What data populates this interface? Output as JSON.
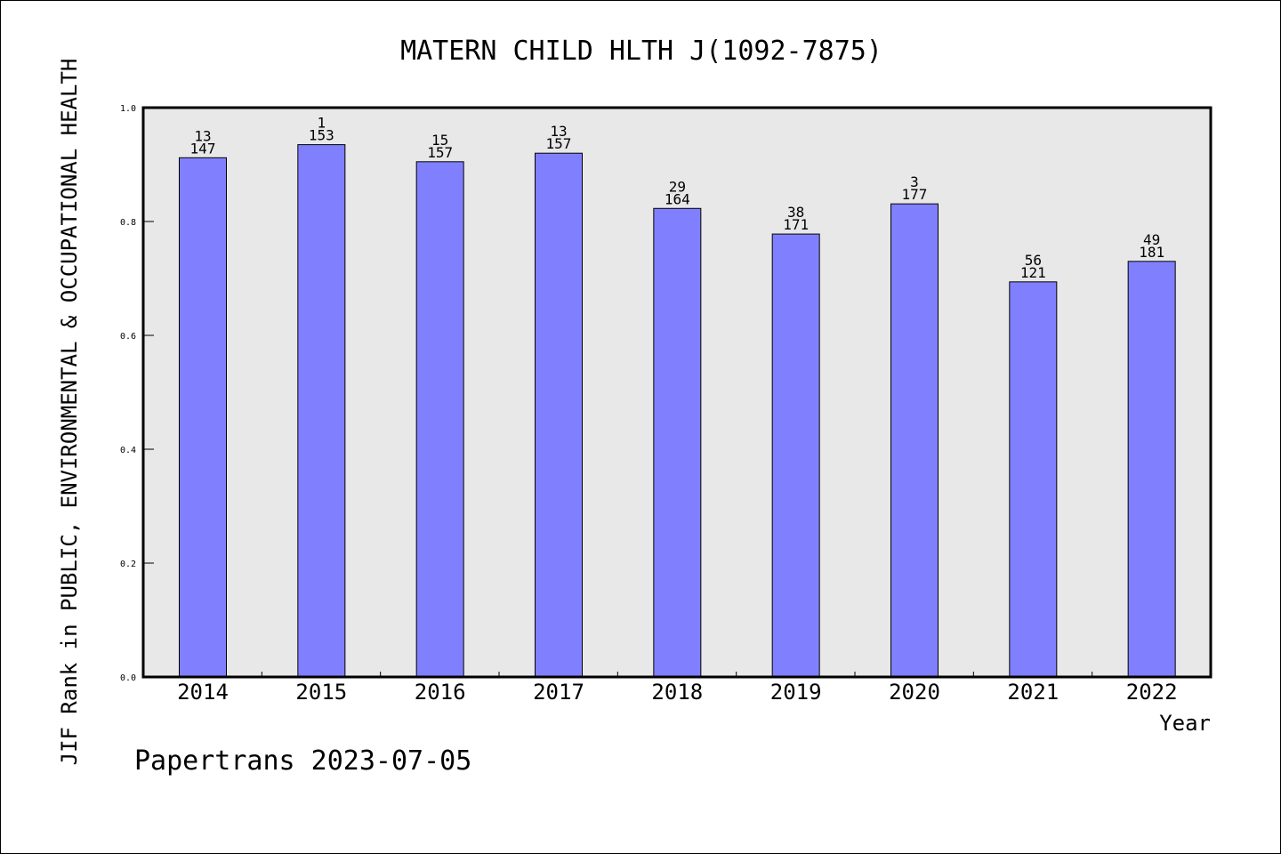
{
  "chart_data": {
    "type": "bar",
    "title": "MATERN CHILD HLTH J(1092-7875)",
    "xlabel": "Year",
    "ylabel": "JIF Rank in PUBLIC, ENVIRONMENTAL & OCCUPATIONAL HEALTH",
    "ylim": [
      0.0,
      1.0
    ],
    "yticks": [
      "0.0",
      "0.2",
      "0.4",
      "0.6",
      "0.8",
      "1.0"
    ],
    "categories": [
      "2014",
      "2015",
      "2016",
      "2017",
      "2018",
      "2019",
      "2020",
      "2021",
      "2022"
    ],
    "values": [
      0.912,
      0.935,
      0.905,
      0.92,
      0.823,
      0.778,
      0.831,
      0.694,
      0.73
    ],
    "rank": [
      "13",
      "1",
      "15",
      "13",
      "29",
      "38",
      "3",
      "56",
      "49"
    ],
    "total": [
      "147",
      "153",
      "157",
      "157",
      "164",
      "171",
      "177",
      "121",
      "181"
    ],
    "bar_color": "#8080ff",
    "plot_bg": "#e8e8e8",
    "grid": false
  },
  "footer": "Papertrans 2023-07-05"
}
